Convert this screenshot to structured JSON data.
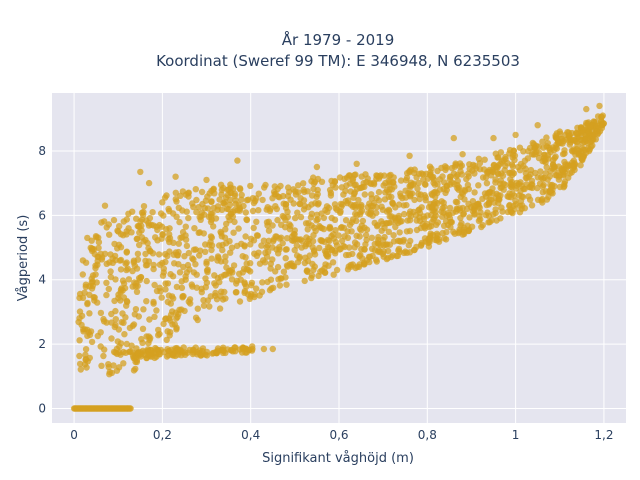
{
  "chart_data": {
    "type": "scatter",
    "title_lines": [
      "År 1979 - 2019",
      "Koordinat (Sweref 99 TM): E 346948, N 6235503"
    ],
    "xlabel": "Signifikant våghöjd (m)",
    "ylabel": "Vågperiod (s)",
    "xlim": [
      -0.05,
      1.25
    ],
    "ylim": [
      -0.45,
      9.8
    ],
    "x_ticks": [
      0,
      0.2,
      0.4,
      0.6,
      0.8,
      1,
      1.2
    ],
    "x_tick_labels": [
      "0",
      "0,2",
      "0,4",
      "0,6",
      "0,8",
      "1",
      "1,2"
    ],
    "y_ticks": [
      0,
      2,
      4,
      6,
      8
    ],
    "y_tick_labels": [
      "0",
      "2",
      "4",
      "6",
      "8"
    ],
    "grid": true,
    "legend": "none",
    "marker_color": "#d4a020",
    "background_color": "#e5e5ef",
    "series": [
      {
        "band": "main",
        "x": [
          0.01,
          0.02,
          0.04,
          0.06,
          0.08,
          0.1,
          0.13,
          0.16,
          0.2,
          0.25,
          0.3,
          0.35,
          0.4,
          0.45,
          0.5,
          0.55,
          0.6,
          0.65,
          0.7,
          0.75,
          0.8,
          0.85,
          0.9,
          0.95,
          1.0,
          1.05,
          1.1,
          1.15,
          1.2
        ],
        "y_low": [
          1.2,
          1.1,
          1.05,
          1.05,
          1.05,
          1.05,
          1.1,
          1.5,
          2.0,
          2.5,
          2.9,
          3.2,
          3.4,
          3.6,
          3.8,
          4.0,
          4.2,
          4.4,
          4.6,
          4.8,
          5.0,
          5.25,
          5.5,
          5.75,
          6.0,
          6.3,
          6.7,
          7.6,
          8.8
        ],
        "y_high": [
          4.4,
          5.3,
          5.6,
          5.8,
          6.0,
          6.1,
          6.2,
          6.4,
          6.6,
          6.8,
          6.9,
          7.0,
          7.0,
          7.0,
          7.1,
          7.2,
          7.2,
          7.3,
          7.3,
          7.4,
          7.5,
          7.6,
          7.7,
          7.9,
          8.1,
          8.3,
          8.6,
          8.8,
          9.2
        ]
      },
      {
        "band": "lower-tail",
        "x": [
          0.13,
          0.18,
          0.24,
          0.3,
          0.36,
          0.41
        ],
        "y_low": [
          1.45,
          1.55,
          1.6,
          1.65,
          1.7,
          1.75
        ],
        "y_high": [
          1.75,
          1.85,
          1.9,
          1.9,
          1.9,
          1.95
        ]
      },
      {
        "band": "zero-period",
        "x": [
          0.0,
          0.13
        ],
        "y_low": [
          0.0,
          0.0
        ],
        "y_high": [
          0.0,
          0.0
        ]
      }
    ],
    "outliers": [
      [
        1.19,
        9.4
      ],
      [
        1.16,
        9.3
      ],
      [
        1.1,
        8.6
      ],
      [
        1.0,
        8.5
      ],
      [
        0.86,
        8.4
      ],
      [
        0.95,
        8.4
      ],
      [
        0.76,
        7.85
      ],
      [
        0.88,
        7.9
      ],
      [
        0.64,
        7.6
      ],
      [
        0.55,
        7.5
      ],
      [
        0.37,
        7.7
      ],
      [
        0.15,
        7.35
      ],
      [
        0.17,
        7.0
      ],
      [
        0.23,
        7.2
      ],
      [
        0.07,
        6.3
      ],
      [
        0.3,
        7.1
      ],
      [
        0.43,
        1.85
      ],
      [
        0.45,
        1.85
      ],
      [
        0.02,
        4.6
      ],
      [
        0.03,
        5.3
      ],
      [
        1.05,
        8.8
      ]
    ]
  }
}
